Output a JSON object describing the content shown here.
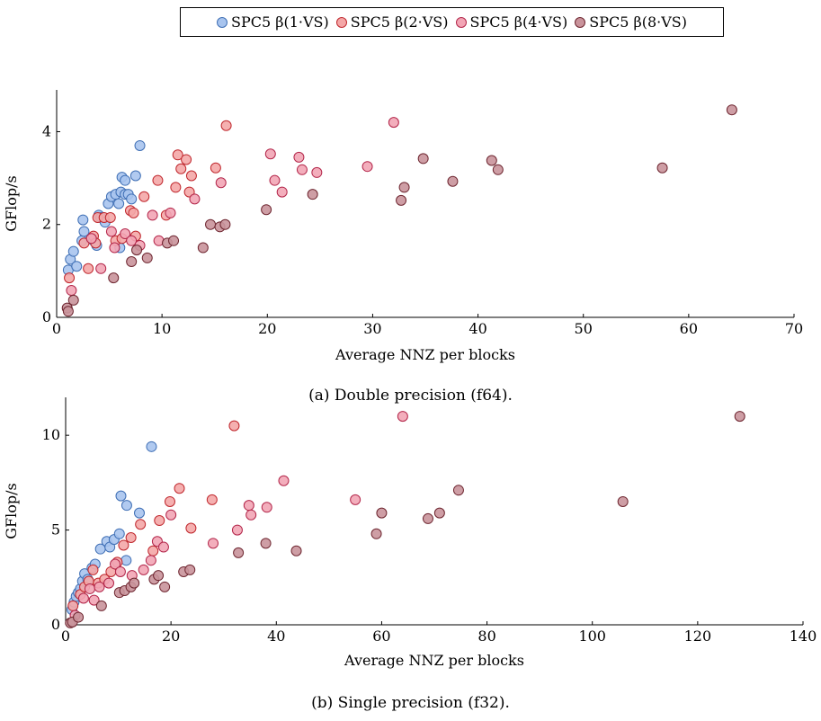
{
  "legend": [
    {
      "label": "SPC5 β(1·VS)",
      "fill": "#a8c4ee",
      "stroke": "#3f6fb5"
    },
    {
      "label": "SPC5 β(2·VS)",
      "fill": "#f4a7a7",
      "stroke": "#c0282e"
    },
    {
      "label": "SPC5 β(4·VS)",
      "fill": "#f2a5b5",
      "stroke": "#b3264a"
    },
    {
      "label": "SPC5 β(8·VS)",
      "fill": "#c9939b",
      "stroke": "#6e2630"
    }
  ],
  "captions": {
    "a": "(a) Double precision (f64).",
    "b": "(b) Single precision (f32)."
  },
  "chart_data": [
    {
      "type": "scatter",
      "xlabel": "Average NNZ per blocks",
      "ylabel": "GFlop/s",
      "xlim": [
        0,
        70
      ],
      "ylim": [
        0,
        4.9
      ],
      "xticks": [
        0,
        10,
        20,
        30,
        40,
        50,
        60,
        70
      ],
      "yticks": [
        0,
        2,
        4
      ],
      "series": [
        {
          "name": "SPC5 β(1·VS)",
          "points": [
            [
              1.1,
              1.02
            ],
            [
              1.3,
              1.25
            ],
            [
              1.6,
              1.42
            ],
            [
              1.9,
              1.1
            ],
            [
              2.4,
              1.65
            ],
            [
              2.5,
              2.1
            ],
            [
              2.6,
              1.85
            ],
            [
              3.5,
              1.65
            ],
            [
              3.8,
              1.55
            ],
            [
              4,
              2.2
            ],
            [
              4.2,
              2.15
            ],
            [
              4.9,
              2.45
            ],
            [
              5.2,
              2.6
            ],
            [
              5.6,
              2.65
            ],
            [
              5.9,
              2.45
            ],
            [
              6.1,
              2.7
            ],
            [
              6.2,
              3.02
            ],
            [
              6.5,
              2.95
            ],
            [
              6.5,
              2.65
            ],
            [
              6.8,
              2.65
            ],
            [
              7.1,
              2.55
            ],
            [
              7.5,
              3.05
            ],
            [
              7.9,
              3.7
            ],
            [
              6,
              1.5
            ],
            [
              4.6,
              2.05
            ]
          ]
        },
        {
          "name": "SPC5 β(2·VS)",
          "points": [
            [
              1.2,
              0.85
            ],
            [
              2.6,
              1.6
            ],
            [
              3,
              1.05
            ],
            [
              3.5,
              1.75
            ],
            [
              3.7,
              1.6
            ],
            [
              3.9,
              2.15
            ],
            [
              4.5,
              2.15
            ],
            [
              5.1,
              2.15
            ],
            [
              5.6,
              1.65
            ],
            [
              6.2,
              1.7
            ],
            [
              7,
              2.3
            ],
            [
              7.3,
              2.25
            ],
            [
              7.5,
              1.75
            ],
            [
              8.3,
              2.6
            ],
            [
              9.6,
              2.95
            ],
            [
              10.4,
              2.2
            ],
            [
              11.3,
              2.8
            ],
            [
              11.5,
              3.5
            ],
            [
              11.8,
              3.2
            ],
            [
              12.3,
              3.4
            ],
            [
              12.6,
              2.7
            ],
            [
              12.8,
              3.05
            ],
            [
              15.1,
              3.22
            ],
            [
              16.1,
              4.13
            ]
          ]
        },
        {
          "name": "SPC5 β(4·VS)",
          "points": [
            [
              1.4,
              0.58
            ],
            [
              3.3,
              1.7
            ],
            [
              4.2,
              1.05
            ],
            [
              5.2,
              1.85
            ],
            [
              5.5,
              1.5
            ],
            [
              6.5,
              1.8
            ],
            [
              7.1,
              1.65
            ],
            [
              7.9,
              1.55
            ],
            [
              9.1,
              2.2
            ],
            [
              9.7,
              1.65
            ],
            [
              10.8,
              2.25
            ],
            [
              13.1,
              2.55
            ],
            [
              15.6,
              2.9
            ],
            [
              20.3,
              3.52
            ],
            [
              20.7,
              2.95
            ],
            [
              21.4,
              2.7
            ],
            [
              23,
              3.45
            ],
            [
              23.3,
              3.18
            ],
            [
              24.7,
              3.12
            ],
            [
              29.5,
              3.25
            ],
            [
              32,
              4.2
            ]
          ]
        },
        {
          "name": "SPC5 β(8·VS)",
          "points": [
            [
              1,
              0.2
            ],
            [
              1.1,
              0.13
            ],
            [
              1.6,
              0.37
            ],
            [
              5.4,
              0.85
            ],
            [
              7.1,
              1.2
            ],
            [
              7.6,
              1.45
            ],
            [
              8.6,
              1.28
            ],
            [
              10.5,
              1.6
            ],
            [
              11.1,
              1.65
            ],
            [
              13.9,
              1.5
            ],
            [
              14.6,
              2
            ],
            [
              15.5,
              1.95
            ],
            [
              16,
              2
            ],
            [
              19.9,
              2.32
            ],
            [
              24.3,
              2.65
            ],
            [
              32.7,
              2.52
            ],
            [
              33,
              2.8
            ],
            [
              34.8,
              3.42
            ],
            [
              37.6,
              2.93
            ],
            [
              41.3,
              3.38
            ],
            [
              41.9,
              3.18
            ],
            [
              57.5,
              3.22
            ],
            [
              64.1,
              4.47
            ]
          ]
        }
      ]
    },
    {
      "type": "scatter",
      "xlabel": "Average NNZ per blocks",
      "ylabel": "GFlop/s",
      "xlim": [
        0,
        140
      ],
      "ylim": [
        0,
        12
      ],
      "xticks": [
        0,
        20,
        40,
        60,
        80,
        100,
        120,
        140
      ],
      "yticks": [
        0,
        5,
        10
      ],
      "series": [
        {
          "name": "SPC5 β(1·VS)",
          "points": [
            [
              1.2,
              0.8
            ],
            [
              1.6,
              1.2
            ],
            [
              2,
              1.5
            ],
            [
              2.4,
              1.7
            ],
            [
              2.8,
              1.9
            ],
            [
              3.2,
              2.3
            ],
            [
              3.6,
              2.7
            ],
            [
              4.2,
              2.4
            ],
            [
              5,
              3
            ],
            [
              5.6,
              3.2
            ],
            [
              6.6,
              4
            ],
            [
              7.8,
              4.4
            ],
            [
              8.4,
              4.1
            ],
            [
              9.2,
              4.5
            ],
            [
              10.2,
              4.8
            ],
            [
              10.5,
              6.8
            ],
            [
              11.6,
              6.3
            ],
            [
              14,
              5.9
            ],
            [
              16.3,
              9.4
            ],
            [
              11.5,
              3.4
            ]
          ]
        },
        {
          "name": "SPC5 β(2·VS)",
          "points": [
            [
              1.4,
              1
            ],
            [
              2.8,
              1.6
            ],
            [
              3.6,
              2
            ],
            [
              4.4,
              2.3
            ],
            [
              5.2,
              2.9
            ],
            [
              6.2,
              2.2
            ],
            [
              7.4,
              2.4
            ],
            [
              8.6,
              2.8
            ],
            [
              9.8,
              3.3
            ],
            [
              11,
              4.2
            ],
            [
              12.4,
              4.6
            ],
            [
              14.2,
              5.3
            ],
            [
              16.6,
              3.9
            ],
            [
              17.8,
              5.5
            ],
            [
              19.8,
              6.5
            ],
            [
              21.6,
              7.2
            ],
            [
              23.8,
              5.1
            ],
            [
              27.8,
              6.6
            ],
            [
              32,
              10.5
            ]
          ]
        },
        {
          "name": "SPC5 β(4·VS)",
          "points": [
            [
              1.8,
              0.5
            ],
            [
              3.4,
              1.4
            ],
            [
              4.6,
              1.9
            ],
            [
              5.4,
              1.3
            ],
            [
              6.4,
              2
            ],
            [
              8.2,
              2.2
            ],
            [
              9.4,
              3.2
            ],
            [
              10.4,
              2.8
            ],
            [
              12.6,
              2.6
            ],
            [
              14.8,
              2.9
            ],
            [
              16.2,
              3.4
            ],
            [
              17.4,
              4.4
            ],
            [
              18.6,
              4.1
            ],
            [
              20,
              5.8
            ],
            [
              28,
              4.3
            ],
            [
              32.6,
              5
            ],
            [
              34.8,
              6.3
            ],
            [
              35.2,
              5.8
            ],
            [
              38.2,
              6.2
            ],
            [
              41.4,
              7.6
            ],
            [
              55,
              6.6
            ],
            [
              64,
              11
            ]
          ]
        },
        {
          "name": "SPC5 β(8·VS)",
          "points": [
            [
              0.9,
              0.1
            ],
            [
              1.3,
              0.15
            ],
            [
              2.4,
              0.4
            ],
            [
              6.8,
              1
            ],
            [
              10.2,
              1.7
            ],
            [
              11.2,
              1.8
            ],
            [
              12.4,
              2
            ],
            [
              13,
              2.2
            ],
            [
              16.8,
              2.4
            ],
            [
              17.6,
              2.6
            ],
            [
              18.8,
              2
            ],
            [
              22.4,
              2.8
            ],
            [
              23.6,
              2.9
            ],
            [
              32.8,
              3.8
            ],
            [
              38,
              4.3
            ],
            [
              43.8,
              3.9
            ],
            [
              59,
              4.8
            ],
            [
              60,
              5.9
            ],
            [
              68.8,
              5.6
            ],
            [
              71,
              5.9
            ],
            [
              74.6,
              7.1
            ],
            [
              105.8,
              6.5
            ],
            [
              128,
              11
            ]
          ]
        }
      ]
    }
  ]
}
